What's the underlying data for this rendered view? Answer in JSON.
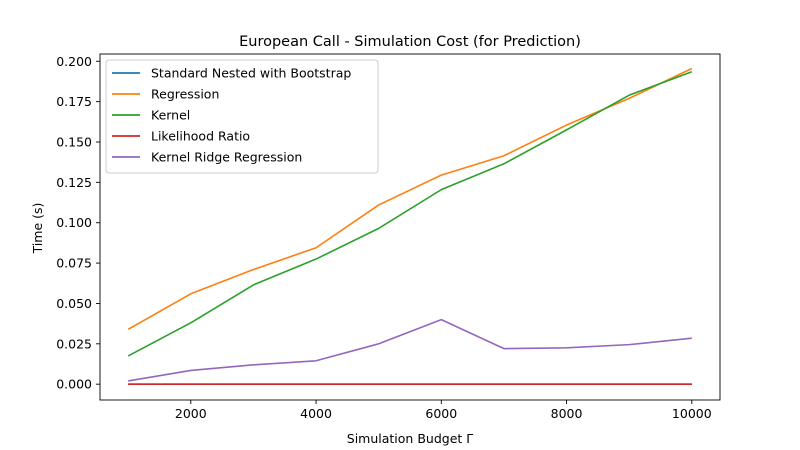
{
  "chart_data": {
    "type": "line",
    "title": "European Call - Simulation Cost (for Prediction)",
    "xlabel": "Simulation Budget Γ",
    "ylabel": "Time (s)",
    "xlim": [
      550,
      10450
    ],
    "ylim": [
      -0.0098,
      0.2045
    ],
    "x_ticks": [
      2000,
      4000,
      6000,
      8000,
      10000
    ],
    "x_tick_labels": [
      "2000",
      "4000",
      "6000",
      "8000",
      "10000"
    ],
    "y_ticks": [
      0.0,
      0.025,
      0.05,
      0.075,
      0.1,
      0.125,
      0.15,
      0.175,
      0.2
    ],
    "y_tick_labels": [
      "0.000",
      "0.025",
      "0.050",
      "0.075",
      "0.100",
      "0.125",
      "0.150",
      "0.175",
      "0.200"
    ],
    "grid": false,
    "legend_position": "top-left",
    "x": [
      1000,
      2000,
      3000,
      4000,
      5000,
      6000,
      7000,
      8000,
      9000,
      10000
    ],
    "series": [
      {
        "name": "Standard Nested with Bootstrap",
        "color": "#1f77b4",
        "values": [
          0,
          0,
          0,
          0,
          0,
          0,
          0,
          0,
          0,
          0
        ]
      },
      {
        "name": "Regression",
        "color": "#ff7f0e",
        "values": [
          0.034,
          0.056,
          0.071,
          0.0845,
          0.111,
          0.1295,
          0.1415,
          0.1605,
          0.177,
          0.1955
        ]
      },
      {
        "name": "Kernel",
        "color": "#2ca02c",
        "values": [
          0.0175,
          0.038,
          0.0615,
          0.0775,
          0.0965,
          0.1205,
          0.1365,
          0.1575,
          0.179,
          0.1935
        ]
      },
      {
        "name": "Likelihood Ratio",
        "color": "#d62728",
        "values": [
          0,
          0,
          0,
          0,
          0,
          0,
          0,
          0,
          0,
          0
        ]
      },
      {
        "name": "Kernel Ridge Regression",
        "color": "#9467bd",
        "values": [
          0.002,
          0.0085,
          0.012,
          0.0145,
          0.025,
          0.04,
          0.022,
          0.0225,
          0.0245,
          0.0285
        ]
      }
    ]
  }
}
